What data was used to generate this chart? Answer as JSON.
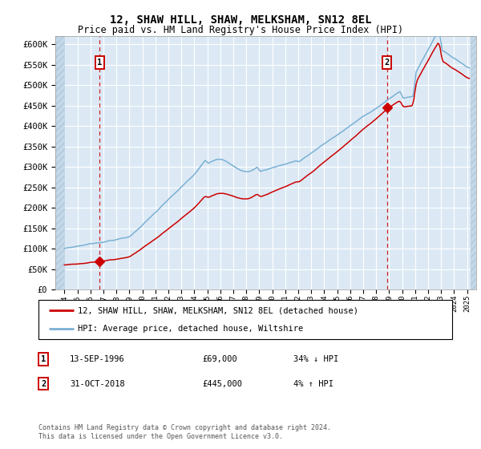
{
  "title": "12, SHAW HILL, SHAW, MELKSHAM, SN12 8EL",
  "subtitle": "Price paid vs. HM Land Registry's House Price Index (HPI)",
  "ylim": [
    0,
    620000
  ],
  "xlim_start": 1993.3,
  "xlim_end": 2025.7,
  "background_color": "#dce9f5",
  "hatch_color": "#c5d8e8",
  "grid_color": "#ffffff",
  "red_line_color": "#cc0000",
  "blue_line_color": "#7ab0d4",
  "sale1_x": 1996.71,
  "sale1_y": 69000,
  "sale1_label": "1",
  "sale2_x": 2018.83,
  "sale2_y": 445000,
  "sale2_label": "2",
  "legend_red": "12, SHAW HILL, SHAW, MELKSHAM, SN12 8EL (detached house)",
  "legend_blue": "HPI: Average price, detached house, Wiltshire",
  "note1_num": "1",
  "note1_date": "13-SEP-1996",
  "note1_price": "£69,000",
  "note1_hpi": "34% ↓ HPI",
  "note2_num": "2",
  "note2_date": "31-OCT-2018",
  "note2_price": "£445,000",
  "note2_hpi": "4% ↑ HPI",
  "footer": "Contains HM Land Registry data © Crown copyright and database right 2024.\nThis data is licensed under the Open Government Licence v3.0.",
  "yticks": [
    0,
    50000,
    100000,
    150000,
    200000,
    250000,
    300000,
    350000,
    400000,
    450000,
    500000,
    550000,
    600000
  ],
  "ytick_labels": [
    "£0",
    "£50K",
    "£100K",
    "£150K",
    "£200K",
    "£250K",
    "£300K",
    "£350K",
    "£400K",
    "£450K",
    "£500K",
    "£550K",
    "£600K"
  ],
  "hpi_years": [
    1994.0,
    1994.08,
    1994.17,
    1994.25,
    1994.33,
    1994.42,
    1994.5,
    1994.58,
    1994.67,
    1994.75,
    1994.83,
    1994.92,
    1995.0,
    1995.08,
    1995.17,
    1995.25,
    1995.33,
    1995.42,
    1995.5,
    1995.58,
    1995.67,
    1995.75,
    1995.83,
    1995.92,
    1996.0,
    1996.08,
    1996.17,
    1996.25,
    1996.33,
    1996.42,
    1996.5,
    1996.58,
    1996.67,
    1996.75,
    1996.83,
    1996.92,
    1997.0,
    1997.08,
    1997.17,
    1997.25,
    1997.33,
    1997.42,
    1997.5,
    1997.58,
    1997.67,
    1997.75,
    1997.83,
    1997.92,
    1998.0,
    1998.08,
    1998.17,
    1998.25,
    1998.33,
    1998.42,
    1998.5,
    1998.58,
    1998.67,
    1998.75,
    1998.83,
    1998.92,
    1999.0,
    1999.08,
    1999.17,
    1999.25,
    1999.33,
    1999.42,
    1999.5,
    1999.58,
    1999.67,
    1999.75,
    1999.83,
    1999.92,
    2000.0,
    2000.08,
    2000.17,
    2000.25,
    2000.33,
    2000.42,
    2000.5,
    2000.58,
    2000.67,
    2000.75,
    2000.83,
    2000.92,
    2001.0,
    2001.08,
    2001.17,
    2001.25,
    2001.33,
    2001.42,
    2001.5,
    2001.58,
    2001.67,
    2001.75,
    2001.83,
    2001.92,
    2002.0,
    2002.08,
    2002.17,
    2002.25,
    2002.33,
    2002.42,
    2002.5,
    2002.58,
    2002.67,
    2002.75,
    2002.83,
    2002.92,
    2003.0,
    2003.08,
    2003.17,
    2003.25,
    2003.33,
    2003.42,
    2003.5,
    2003.58,
    2003.67,
    2003.75,
    2003.83,
    2003.92,
    2004.0,
    2004.08,
    2004.17,
    2004.25,
    2004.33,
    2004.42,
    2004.5,
    2004.58,
    2004.67,
    2004.75,
    2004.83,
    2004.92,
    2005.0,
    2005.08,
    2005.17,
    2005.25,
    2005.33,
    2005.42,
    2005.5,
    2005.58,
    2005.67,
    2005.75,
    2005.83,
    2005.92,
    2006.0,
    2006.08,
    2006.17,
    2006.25,
    2006.33,
    2006.42,
    2006.5,
    2006.58,
    2006.67,
    2006.75,
    2006.83,
    2006.92,
    2007.0,
    2007.08,
    2007.17,
    2007.25,
    2007.33,
    2007.42,
    2007.5,
    2007.58,
    2007.67,
    2007.75,
    2007.83,
    2007.92,
    2008.0,
    2008.08,
    2008.17,
    2008.25,
    2008.33,
    2008.42,
    2008.5,
    2008.58,
    2008.67,
    2008.75,
    2008.83,
    2008.92,
    2009.0,
    2009.08,
    2009.17,
    2009.25,
    2009.33,
    2009.42,
    2009.5,
    2009.58,
    2009.67,
    2009.75,
    2009.83,
    2009.92,
    2010.0,
    2010.08,
    2010.17,
    2010.25,
    2010.33,
    2010.42,
    2010.5,
    2010.58,
    2010.67,
    2010.75,
    2010.83,
    2010.92,
    2011.0,
    2011.08,
    2011.17,
    2011.25,
    2011.33,
    2011.42,
    2011.5,
    2011.58,
    2011.67,
    2011.75,
    2011.83,
    2011.92,
    2012.0,
    2012.08,
    2012.17,
    2012.25,
    2012.33,
    2012.42,
    2012.5,
    2012.58,
    2012.67,
    2012.75,
    2012.83,
    2012.92,
    2013.0,
    2013.08,
    2013.17,
    2013.25,
    2013.33,
    2013.42,
    2013.5,
    2013.58,
    2013.67,
    2013.75,
    2013.83,
    2013.92,
    2014.0,
    2014.08,
    2014.17,
    2014.25,
    2014.33,
    2014.42,
    2014.5,
    2014.58,
    2014.67,
    2014.75,
    2014.83,
    2014.92,
    2015.0,
    2015.08,
    2015.17,
    2015.25,
    2015.33,
    2015.42,
    2015.5,
    2015.58,
    2015.67,
    2015.75,
    2015.83,
    2015.92,
    2016.0,
    2016.08,
    2016.17,
    2016.25,
    2016.33,
    2016.42,
    2016.5,
    2016.58,
    2016.67,
    2016.75,
    2016.83,
    2016.92,
    2017.0,
    2017.08,
    2017.17,
    2017.25,
    2017.33,
    2017.42,
    2017.5,
    2017.58,
    2017.67,
    2017.75,
    2017.83,
    2017.92,
    2018.0,
    2018.08,
    2018.17,
    2018.25,
    2018.33,
    2018.42,
    2018.5,
    2018.58,
    2018.67,
    2018.75,
    2018.83,
    2018.92,
    2019.0,
    2019.08,
    2019.17,
    2019.25,
    2019.33,
    2019.42,
    2019.5,
    2019.58,
    2019.67,
    2019.75,
    2019.83,
    2019.92,
    2020.0,
    2020.08,
    2020.17,
    2020.25,
    2020.33,
    2020.42,
    2020.5,
    2020.58,
    2020.67,
    2020.75,
    2020.83,
    2020.92,
    2021.0,
    2021.08,
    2021.17,
    2021.25,
    2021.33,
    2021.42,
    2021.5,
    2021.58,
    2021.67,
    2021.75,
    2021.83,
    2021.92,
    2022.0,
    2022.08,
    2022.17,
    2022.25,
    2022.33,
    2022.42,
    2022.5,
    2022.58,
    2022.67,
    2022.75,
    2022.83,
    2022.92,
    2023.0,
    2023.08,
    2023.17,
    2023.25,
    2023.33,
    2023.42,
    2023.5,
    2023.58,
    2023.67,
    2023.75,
    2023.83,
    2023.92,
    2024.0,
    2024.08,
    2024.17,
    2024.25,
    2024.33,
    2024.42,
    2024.5,
    2024.58,
    2024.67,
    2024.75,
    2024.83,
    2024.92,
    2025.0,
    2025.08,
    2025.17
  ]
}
